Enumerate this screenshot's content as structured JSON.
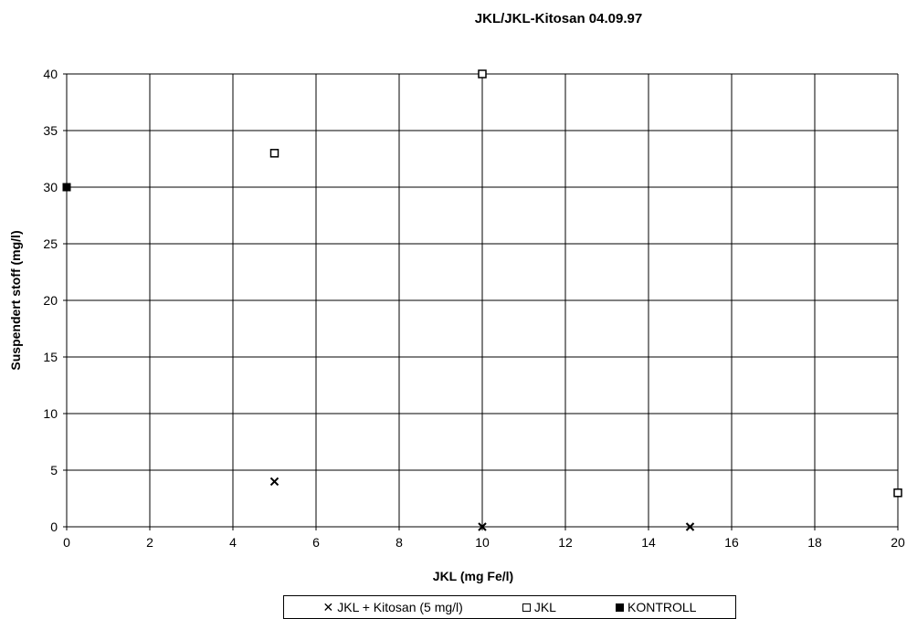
{
  "chart_data": {
    "type": "scatter",
    "title": "JKL/JKL-Kitosan 04.09.97",
    "xlabel": "JKL (mg Fe/l)",
    "ylabel": "Suspendert stoff (mg/l)",
    "xlim": [
      0,
      20
    ],
    "ylim": [
      0,
      40
    ],
    "xticks": [
      "0",
      "2",
      "4",
      "6",
      "8",
      "10",
      "12",
      "14",
      "16",
      "18",
      "20"
    ],
    "yticks": [
      "0",
      "5",
      "10",
      "15",
      "20",
      "25",
      "30",
      "35",
      "40"
    ],
    "grid": true,
    "legend_position": "bottom",
    "series": [
      {
        "name": "JKL + Kitosan (5 mg/l)",
        "marker": "cross",
        "x": [
          5,
          10,
          15
        ],
        "y": [
          4,
          0,
          0
        ]
      },
      {
        "name": "JKL",
        "marker": "open-square",
        "x": [
          5,
          10,
          20
        ],
        "y": [
          33,
          40,
          3
        ]
      },
      {
        "name": "KONTROLL",
        "marker": "filled-square",
        "x": [
          0
        ],
        "y": [
          30
        ]
      }
    ]
  }
}
